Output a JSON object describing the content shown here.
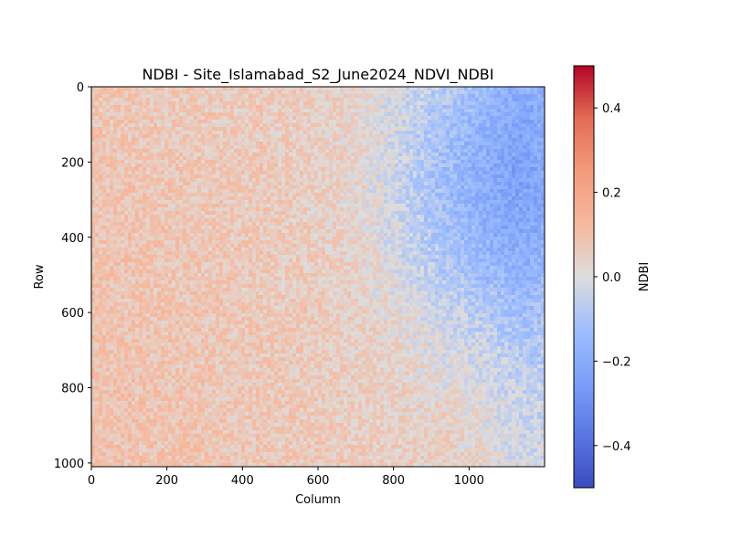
{
  "chart_data": {
    "type": "heatmap",
    "title": "NDBI - Site_Islamabad_S2_June2024_NDVI_NDBI",
    "xlabel": "Column",
    "ylabel": "Row",
    "xlim": [
      0,
      1200
    ],
    "ylim": [
      1010,
      0
    ],
    "x_ticks": [
      0,
      200,
      400,
      600,
      800,
      1000
    ],
    "y_ticks": [
      0,
      200,
      400,
      600,
      800,
      1000
    ],
    "colormap": "coolwarm",
    "colorbar": {
      "label": "NDBI",
      "range": [
        -0.5,
        0.5
      ],
      "ticks": [
        0.4,
        0.2,
        0.0,
        -0.2,
        -0.4
      ],
      "tick_labels": [
        "0.4",
        "0.2",
        "0.0",
        "−0.2",
        "−0.4"
      ]
    },
    "approximate_values": {
      "west_plain_mean": 0.08,
      "central_mean": 0.03,
      "northeast_hills_mean": -0.18,
      "east_edge_mean": -0.12,
      "south_mean": 0.06
    },
    "colors": {
      "cmap_low": "#3b4cc0",
      "cmap_mid": "#dddddd",
      "cmap_high": "#b40426"
    }
  }
}
